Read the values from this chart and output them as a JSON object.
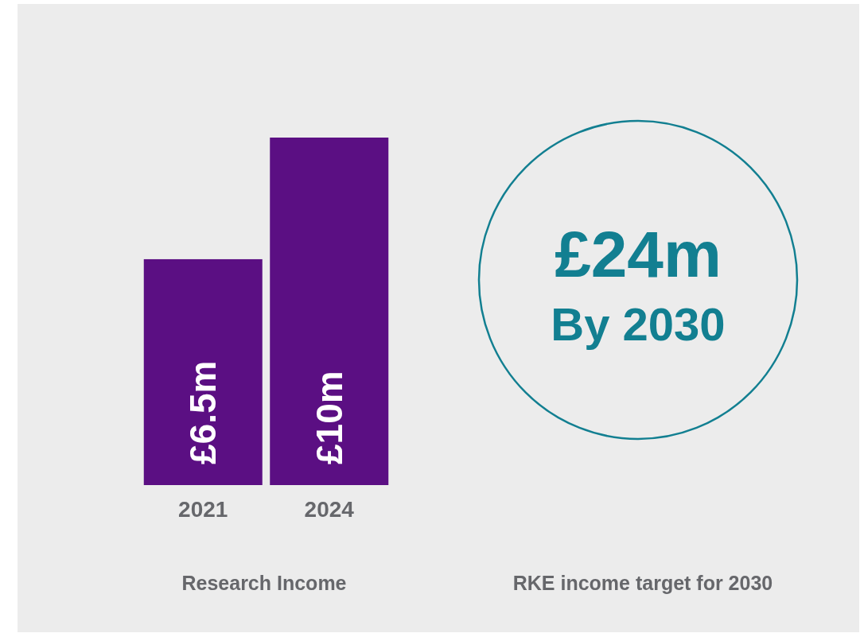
{
  "chart_data": [
    {
      "type": "bar",
      "categories": [
        "2021",
        "2024"
      ],
      "values": [
        6.5,
        10
      ],
      "color": "#5b0f83",
      "value_labels": [
        "£6.5m",
        "£10m"
      ],
      "tick_labels": "x",
      "xlabel": "Research Income"
    },
    {
      "type": "other",
      "annotations": [
        "£24m",
        "By 2030"
      ],
      "xlabel": "RKE income target for 2030"
    }
  ]
}
